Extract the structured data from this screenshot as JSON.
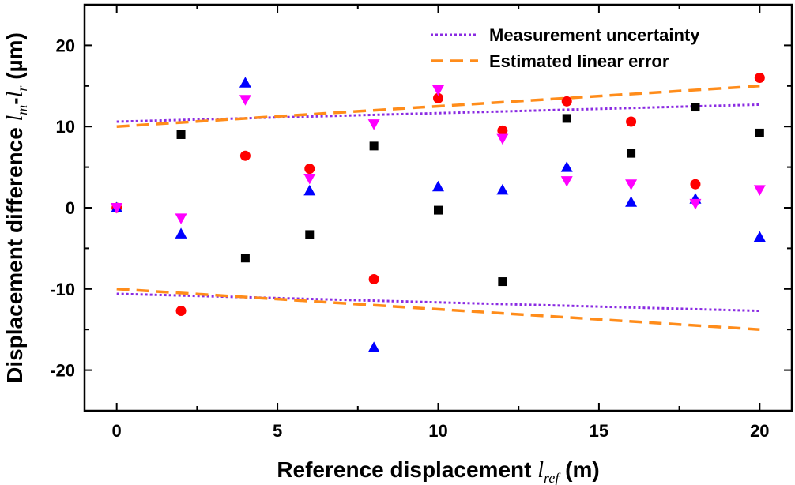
{
  "chart_data": {
    "type": "scatter",
    "xlabel": {
      "main": "Reference displacement ",
      "var": "l",
      "sub": "ref",
      "unit": " (m)"
    },
    "ylabel": {
      "main": "Displacement difference ",
      "var1": "l",
      "sub1": "m",
      "dash": "-",
      "var2": "l",
      "sub2": "r",
      "unit": " (µm)"
    },
    "xlim": [
      -1,
      21
    ],
    "ylim": [
      -25,
      25
    ],
    "xticks": [
      0,
      5,
      10,
      15,
      20
    ],
    "yticks": [
      -20,
      -10,
      0,
      10,
      20
    ],
    "grid": false,
    "legend_position": "top-right",
    "legend": [
      {
        "label": "Measurement uncertainty",
        "style": "dotted",
        "color": "#8a2be2"
      },
      {
        "label": "Estimated linear error",
        "style": "dashed",
        "color": "#ff8c1a"
      }
    ],
    "lines": [
      {
        "name": "Measurement uncertainty",
        "style": "dotted",
        "color": "#8a2be2",
        "x": [
          0,
          20
        ],
        "y": [
          10.6,
          12.7
        ]
      },
      {
        "name": "Measurement uncertainty",
        "style": "dotted",
        "color": "#8a2be2",
        "x": [
          0,
          20
        ],
        "y": [
          -10.6,
          -12.7
        ]
      },
      {
        "name": "Estimated linear error",
        "style": "dashed",
        "color": "#ff8c1a",
        "x": [
          0,
          20
        ],
        "y": [
          10.0,
          15.0
        ]
      },
      {
        "name": "Estimated linear error",
        "style": "dashed",
        "color": "#ff8c1a",
        "x": [
          0,
          20
        ],
        "y": [
          -10.0,
          -15.0
        ]
      }
    ],
    "series": [
      {
        "marker": "square",
        "color": "#000000",
        "x": [
          0,
          2,
          4,
          6,
          8,
          10,
          12,
          14,
          16,
          18,
          20
        ],
        "y": [
          0,
          9.0,
          -6.2,
          -3.3,
          7.6,
          -0.3,
          -9.1,
          11.0,
          6.7,
          12.4,
          9.2
        ]
      },
      {
        "marker": "circle",
        "color": "#ff0000",
        "x": [
          0,
          2,
          4,
          6,
          8,
          10,
          12,
          14,
          16,
          18,
          20
        ],
        "y": [
          0,
          -12.7,
          6.4,
          4.8,
          -8.8,
          13.5,
          9.5,
          13.1,
          10.6,
          2.9,
          16.0
        ]
      },
      {
        "marker": "triangle-up",
        "color": "#0000ff",
        "x": [
          0,
          2,
          4,
          6,
          8,
          10,
          12,
          14,
          16,
          18,
          20
        ],
        "y": [
          0,
          -3.2,
          15.4,
          2.1,
          -17.2,
          2.6,
          2.2,
          5.0,
          0.7,
          1.1,
          -3.6
        ]
      },
      {
        "marker": "triangle-down",
        "color": "#ff00ff",
        "x": [
          0,
          2,
          4,
          6,
          8,
          10,
          12,
          14,
          16,
          18,
          20
        ],
        "y": [
          0,
          -1.3,
          13.3,
          3.6,
          10.3,
          14.5,
          8.5,
          3.3,
          2.9,
          0.5,
          2.2
        ]
      }
    ]
  }
}
